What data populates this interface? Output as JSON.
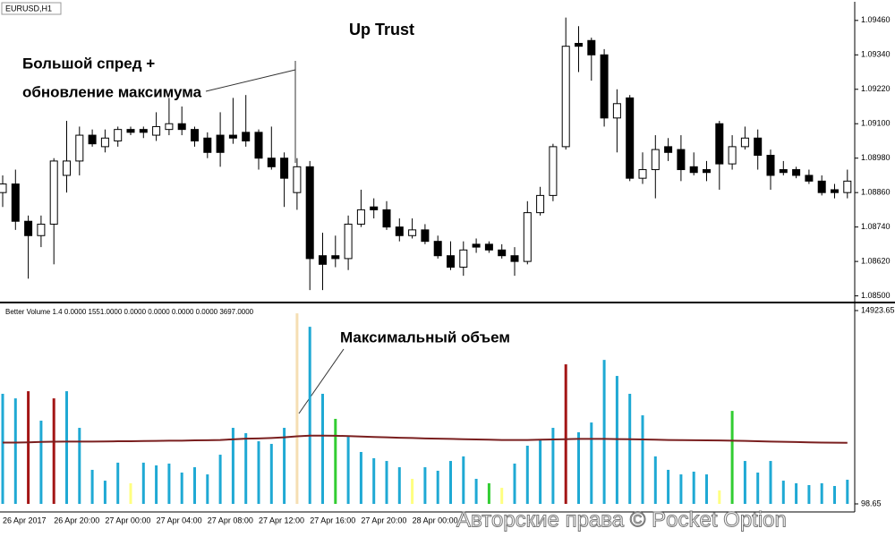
{
  "chart_data": [
    {
      "type": "candlestick",
      "title": "EURUSD,H1",
      "annotations": [
        "Up Trust",
        "Большой спред +",
        "обновление максимума"
      ],
      "categories": [
        "26 Apr 2017",
        null,
        null,
        null,
        "26 Apr 20:00",
        null,
        null,
        null,
        "27 Apr 00:00",
        null,
        null,
        null,
        "27 Apr 04:00",
        null,
        null,
        null,
        "27 Apr 08:00",
        null,
        null,
        null,
        "27 Apr 12:00",
        null,
        null,
        null,
        "27 Apr 16:00",
        null,
        null,
        null,
        "27 Apr 20:00",
        null,
        null,
        null,
        "28 Apr 00:00",
        null,
        null,
        null,
        null,
        null,
        null,
        null,
        null,
        null,
        null,
        null,
        null,
        null,
        null,
        null,
        null,
        null,
        null,
        null,
        null,
        null,
        null,
        null,
        null,
        null,
        null,
        null,
        null,
        null,
        null,
        null,
        null,
        null,
        null
      ],
      "open": [
        1.0886,
        1.0889,
        1.0876,
        1.0871,
        1.0875,
        1.0892,
        1.0897,
        1.0906,
        1.0902,
        1.0904,
        1.0908,
        1.0908,
        1.0906,
        1.0908,
        1.091,
        1.0908,
        1.0905,
        1.0906,
        1.0906,
        1.0907,
        1.0907,
        1.0898,
        1.0898,
        1.0886,
        1.0895,
        1.0864,
        1.0864,
        1.0863,
        1.0875,
        1.0881,
        1.088,
        1.0874,
        1.0871,
        1.0873,
        1.0869,
        1.0864,
        1.086,
        1.0868,
        1.0868,
        1.0866,
        1.0864,
        1.0862,
        1.0879,
        1.0885,
        1.0902,
        1.0938,
        1.0939,
        1.0934,
        1.0912,
        1.0919,
        1.0891,
        1.0894,
        1.0902,
        1.0901,
        1.0895,
        1.0894,
        1.091,
        1.0896,
        1.0902,
        1.0905,
        1.0899,
        1.0894,
        1.0894,
        1.0892,
        1.089,
        1.0887,
        1.0886
      ],
      "high": [
        1.0892,
        1.0894,
        1.0878,
        1.0878,
        1.0898,
        1.0911,
        1.0909,
        1.0908,
        1.0908,
        1.0909,
        1.0909,
        1.0909,
        1.0914,
        1.0919,
        1.0916,
        1.0909,
        1.0907,
        1.0914,
        1.0919,
        1.092,
        1.0908,
        1.0909,
        1.09,
        1.0898,
        1.0897,
        1.0872,
        1.0871,
        1.0878,
        1.0887,
        1.0884,
        1.0883,
        1.0877,
        1.0877,
        1.0875,
        1.0871,
        1.0869,
        1.0869,
        1.087,
        1.0869,
        1.0868,
        1.0867,
        1.0883,
        1.0888,
        1.0903,
        1.0947,
        1.0944,
        1.094,
        1.0936,
        1.0922,
        1.092,
        1.09,
        1.0906,
        1.0905,
        1.0906,
        1.09,
        1.0897,
        1.0911,
        1.0906,
        1.0909,
        1.0908,
        1.0901,
        1.0897,
        1.0895,
        1.0894,
        1.0892,
        1.0889,
        1.0894
      ],
      "low": [
        1.0881,
        1.0873,
        1.0856,
        1.0867,
        1.0861,
        1.0886,
        1.0892,
        1.0902,
        1.09,
        1.0902,
        1.0906,
        1.0905,
        1.0904,
        1.0906,
        1.0906,
        1.0902,
        1.0898,
        1.0895,
        1.0903,
        1.0902,
        1.0894,
        1.0894,
        1.0881,
        1.088,
        1.0852,
        1.0852,
        1.086,
        1.0859,
        1.0874,
        1.0877,
        1.0873,
        1.0869,
        1.087,
        1.0868,
        1.0863,
        1.0859,
        1.0857,
        1.0865,
        1.0865,
        1.0863,
        1.0857,
        1.0861,
        1.0878,
        1.0883,
        1.0901,
        1.0928,
        1.0925,
        1.0909,
        1.09,
        1.089,
        1.0889,
        1.0884,
        1.0897,
        1.089,
        1.0892,
        1.089,
        1.0887,
        1.0894,
        1.0901,
        1.0894,
        1.0887,
        1.0892,
        1.0891,
        1.0889,
        1.0885,
        1.0884,
        1.0884
      ],
      "close": [
        1.0889,
        1.0876,
        1.0871,
        1.0875,
        1.0897,
        1.0897,
        1.0906,
        1.0903,
        1.0905,
        1.0908,
        1.0907,
        1.0907,
        1.0909,
        1.091,
        1.0908,
        1.0904,
        1.09,
        1.09,
        1.0905,
        1.0904,
        1.0898,
        1.0895,
        1.0891,
        1.0895,
        1.0863,
        1.0861,
        1.0863,
        1.0875,
        1.088,
        1.088,
        1.0874,
        1.0871,
        1.0873,
        1.0869,
        1.0864,
        1.086,
        1.0866,
        1.0867,
        1.0866,
        1.0864,
        1.0862,
        1.0879,
        1.0885,
        1.0902,
        1.0937,
        1.0937,
        1.0934,
        1.0912,
        1.0917,
        1.0891,
        1.0894,
        1.0901,
        1.09,
        1.0894,
        1.0893,
        1.0893,
        1.0896,
        1.0902,
        1.0905,
        1.0899,
        1.0892,
        1.0893,
        1.0892,
        1.089,
        1.0886,
        1.0886,
        1.089
      ],
      "up_color": "#ffffff",
      "down_color": "#000000",
      "ylim": [
        1.0848,
        1.095
      ],
      "yticks": [
        {
          "value": 1.0946,
          "label": "1.09460"
        },
        {
          "value": 1.0934,
          "label": "1.09340"
        },
        {
          "value": 1.0922,
          "label": "1.09220"
        },
        {
          "value": 1.091,
          "label": "1.09100"
        },
        {
          "value": 1.0898,
          "label": "1.08980"
        },
        {
          "value": 1.0886,
          "label": "1.08860"
        },
        {
          "value": 1.0874,
          "label": "1.08740"
        },
        {
          "value": 1.0862,
          "label": "1.08620"
        },
        {
          "value": 1.085,
          "label": "1.08500"
        }
      ]
    },
    {
      "type": "bar",
      "title": "Better Volume 1.4 0.0000 1551.0000 0.0000 0.0000 0.0000 0.0000 3697.0000",
      "annotations": [
        "Максимальный объем"
      ],
      "values": [
        8540,
        8190,
        8740,
        6480,
        8190,
        8740,
        5930,
        2710,
        1880,
        3260,
        1680,
        3260,
        3050,
        3190,
        2500,
        2910,
        2360,
        3870,
        5930,
        5520,
        4900,
        4700,
        5930,
        14710,
        13680,
        8540,
        6620,
        5240,
        4080,
        3600,
        3390,
        2910,
        2020,
        2910,
        2640,
        3390,
        3740,
        2020,
        1680,
        1330,
        3190,
        4560,
        4970,
        5930,
        10800,
        5590,
        6340,
        11140,
        9910,
        8540,
        6890,
        3740,
        2710,
        2360,
        2570,
        2360,
        1130,
        7230,
        3390,
        2500,
        3390,
        1880,
        1680,
        1540,
        1680,
        1470,
        1950
      ],
      "colors": [
        "#1fa9d4",
        "#1fa9d4",
        "#a31515",
        "#1fa9d4",
        "#a31515",
        "#1fa9d4",
        "#1fa9d4",
        "#1fa9d4",
        "#1fa9d4",
        "#1fa9d4",
        "#ffff80",
        "#1fa9d4",
        "#1fa9d4",
        "#1fa9d4",
        "#1fa9d4",
        "#1fa9d4",
        "#1fa9d4",
        "#1fa9d4",
        "#1fa9d4",
        "#1fa9d4",
        "#1fa9d4",
        "#1fa9d4",
        "#1fa9d4",
        "#f5deb3",
        "#1fa9d4",
        "#1fa9d4",
        "#32cd32",
        "#1fa9d4",
        "#1fa9d4",
        "#1fa9d4",
        "#1fa9d4",
        "#1fa9d4",
        "#ffff80",
        "#1fa9d4",
        "#1fa9d4",
        "#1fa9d4",
        "#1fa9d4",
        "#1fa9d4",
        "#32cd32",
        "#ffff80",
        "#1fa9d4",
        "#1fa9d4",
        "#1fa9d4",
        "#1fa9d4",
        "#a31515",
        "#1fa9d4",
        "#1fa9d4",
        "#1fa9d4",
        "#1fa9d4",
        "#1fa9d4",
        "#1fa9d4",
        "#1fa9d4",
        "#1fa9d4",
        "#1fa9d4",
        "#1fa9d4",
        "#1fa9d4",
        "#ffff80",
        "#32cd32",
        "#1fa9d4",
        "#1fa9d4",
        "#1fa9d4",
        "#1fa9d4",
        "#1fa9d4",
        "#1fa9d4",
        "#1fa9d4",
        "#1fa9d4",
        "#1fa9d4"
      ],
      "average": [
        4800,
        4800,
        4820,
        4850,
        4870,
        4880,
        4880,
        4880,
        4890,
        4900,
        4900,
        4920,
        4930,
        4950,
        4950,
        4970,
        4980,
        5000,
        5050,
        5100,
        5120,
        5150,
        5200,
        5280,
        5330,
        5330,
        5320,
        5300,
        5260,
        5230,
        5200,
        5170,
        5150,
        5120,
        5100,
        5080,
        5060,
        5040,
        5020,
        5000,
        5000,
        5000,
        5020,
        5040,
        5060,
        5080,
        5080,
        5080,
        5070,
        5060,
        5040,
        5020,
        5000,
        4990,
        4980,
        4970,
        4960,
        4950,
        4930,
        4900,
        4880,
        4860,
        4840,
        4820,
        4800,
        4790,
        4780
      ],
      "average_color": "#7a1f1f",
      "ylim": [
        98.65,
        14923.65
      ],
      "yticks": [
        14923.65,
        98.65
      ]
    }
  ],
  "watermark": "Авторские права © Pocket Option"
}
